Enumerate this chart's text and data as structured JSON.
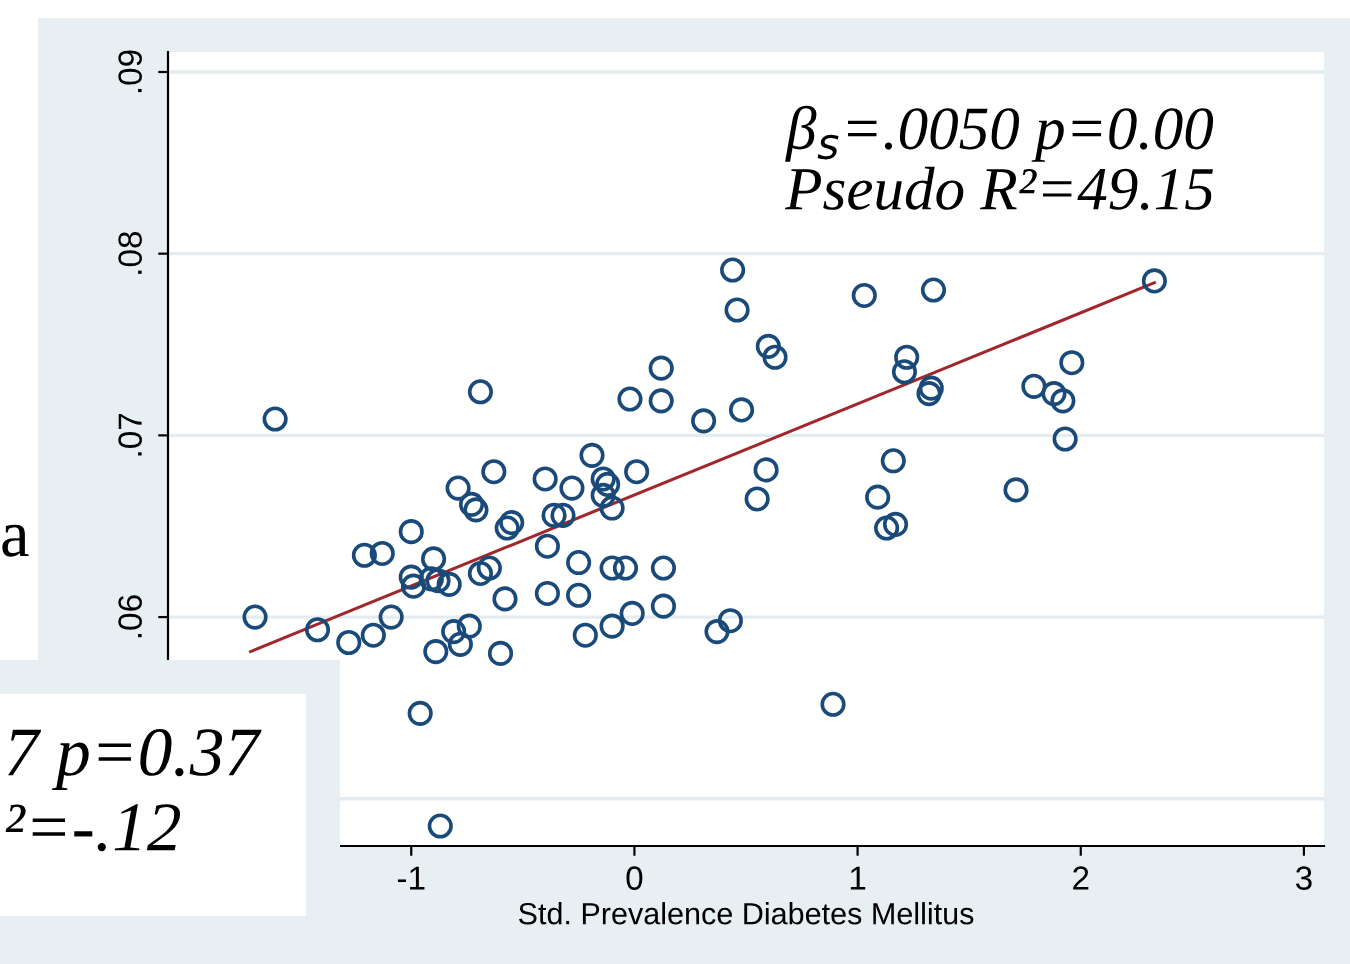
{
  "chart_data": {
    "type": "scatter",
    "xlabel": "Std. Prevalence Diabetes Mellitus",
    "annotations": [
      "β$_{s}$=.0050 p=0.00\nPseudo R²=49.15",
      "a",
      "7 p=0.37\n²=-.12"
    ],
    "xlim": [
      -2.09,
      3.09
    ],
    "xticks": [
      -1,
      0,
      1,
      2,
      3
    ],
    "ylim": [
      0.0474,
      0.0911
    ],
    "yticks": [
      {
        "value": 0.05,
        "label": null
      },
      {
        "value": 0.06,
        "label": ".06"
      },
      {
        "value": 0.07,
        "label": ".07"
      },
      {
        "value": 0.08,
        "label": ".08"
      },
      {
        "value": 0.09,
        "label": ".09"
      }
    ],
    "grid": "y",
    "series": [
      {
        "marker": "circle",
        "color": "#1a4a7a",
        "x": [
          -1.7,
          -1.42,
          -1.61,
          -1.28,
          -1.17,
          -1.21,
          -1.13,
          -1.09,
          -1.0,
          -1.0,
          -0.99,
          -0.9,
          -0.91,
          -0.88,
          -0.83,
          -0.89,
          -0.96,
          -0.87,
          -0.79,
          -0.81,
          -0.78,
          -0.74,
          -0.73,
          -0.71,
          -0.69,
          -0.69,
          -0.65,
          -0.63,
          -0.6,
          -0.58,
          -0.57,
          -0.55,
          -0.4,
          -0.39,
          -0.39,
          -0.36,
          -0.32,
          -0.28,
          -0.25,
          -0.25,
          -0.22,
          -0.19,
          -0.14,
          -0.14,
          -0.1,
          -0.12,
          -0.1,
          -0.1,
          -0.04,
          -0.01,
          0.01,
          -0.02,
          0.12,
          0.12,
          0.13,
          0.13,
          0.31,
          0.37,
          0.43,
          0.44,
          0.46,
          0.48,
          0.55,
          0.59,
          0.6,
          0.63,
          0.89,
          1.03,
          1.09,
          1.13,
          1.17,
          1.16,
          1.21,
          1.22,
          1.34,
          1.32,
          1.33,
          1.71,
          1.79,
          1.88,
          1.92,
          1.96,
          1.93,
          2.33
        ],
        "values": [
          0.06,
          0.0593,
          0.0709,
          0.0586,
          0.059,
          0.0634,
          0.0635,
          0.06,
          0.0647,
          0.0622,
          0.0617,
          0.0632,
          0.0621,
          0.062,
          0.0618,
          0.0581,
          0.0547,
          0.0485,
          0.0671,
          0.0592,
          0.0585,
          0.0595,
          0.0662,
          0.0659,
          0.0724,
          0.0624,
          0.0627,
          0.068,
          0.058,
          0.061,
          0.0649,
          0.0652,
          0.0676,
          0.0639,
          0.0613,
          0.0656,
          0.0656,
          0.0671,
          0.0612,
          0.063,
          0.059,
          0.0689,
          0.0676,
          0.0667,
          0.066,
          0.0673,
          0.0595,
          0.0627,
          0.0627,
          0.0602,
          0.068,
          0.072,
          0.0719,
          0.0737,
          0.0627,
          0.0606,
          0.0708,
          0.0592,
          0.0598,
          0.0791,
          0.0769,
          0.0714,
          0.0665,
          0.0681,
          0.0749,
          0.0743,
          0.0552,
          0.0777,
          0.0666,
          0.0649,
          0.0651,
          0.0686,
          0.0735,
          0.0743,
          0.078,
          0.0723,
          0.0726,
          0.067,
          0.0727,
          0.0723,
          0.0719,
          0.074,
          0.0698,
          0.0785
        ]
      },
      {
        "type": "line",
        "color": "#a0282d",
        "x": [
          -1.72,
          2.33
        ],
        "values": [
          0.0581,
          0.0784
        ]
      }
    ]
  }
}
